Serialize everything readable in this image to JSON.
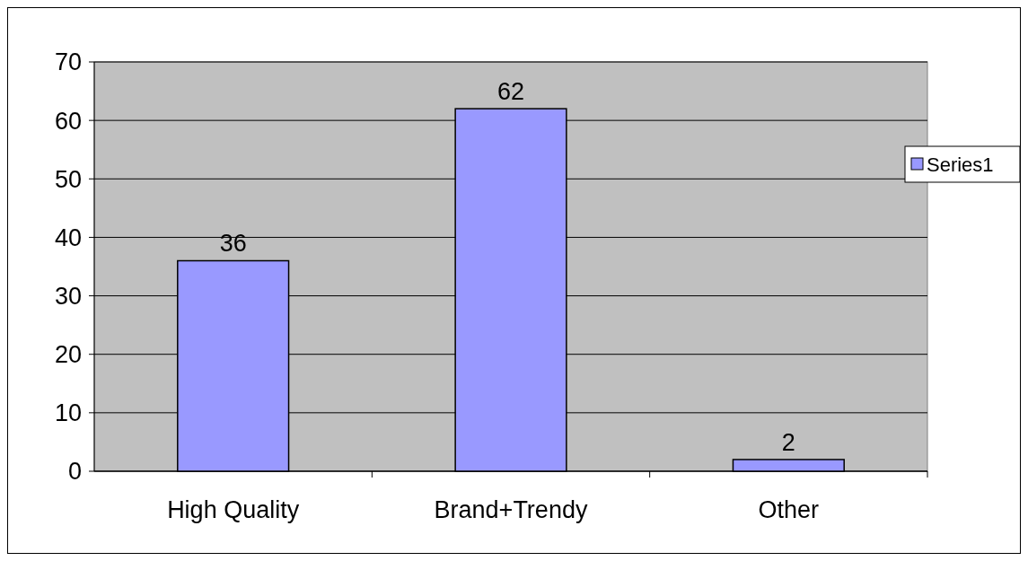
{
  "chart_data": {
    "type": "bar",
    "categories": [
      "High Quality",
      "Brand+Trendy",
      "Other"
    ],
    "series": [
      {
        "name": "Series1",
        "color": "#9999ff",
        "values": [
          36,
          62,
          2
        ]
      }
    ],
    "ylim": [
      0,
      70
    ],
    "yticks": [
      0,
      10,
      20,
      30,
      40,
      50,
      60,
      70
    ],
    "grid": "y",
    "legend": "right",
    "data_labels": true
  }
}
